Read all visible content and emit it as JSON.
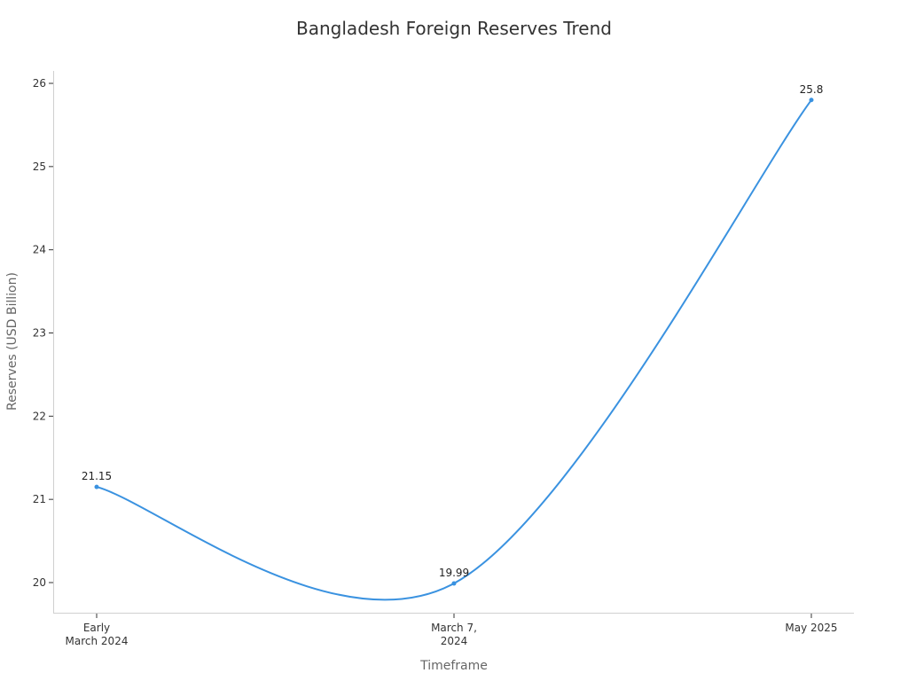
{
  "chart_data": {
    "type": "line",
    "title": "Bangladesh Foreign Reserves Trend",
    "xlabel": "Timeframe",
    "ylabel": "Reserves (USD Billion)",
    "categories": [
      "Early March 2024",
      "March 7, 2024",
      "May 2025"
    ],
    "category_lines": [
      [
        "Early",
        "March 2024"
      ],
      [
        "March 7,",
        "2024"
      ],
      [
        "May 2025"
      ]
    ],
    "series": [
      {
        "name": "Reserves",
        "values": [
          21.15,
          19.99,
          25.8
        ],
        "labels": [
          "21.15",
          "19.99",
          "25.8"
        ],
        "color": "#3a92e0"
      }
    ],
    "yticks": [
      "20",
      "21",
      "22",
      "23",
      "24",
      "25",
      "26"
    ],
    "ylim": [
      19.64,
      26.15
    ],
    "grid": false,
    "legend": "none",
    "smooth": true
  }
}
